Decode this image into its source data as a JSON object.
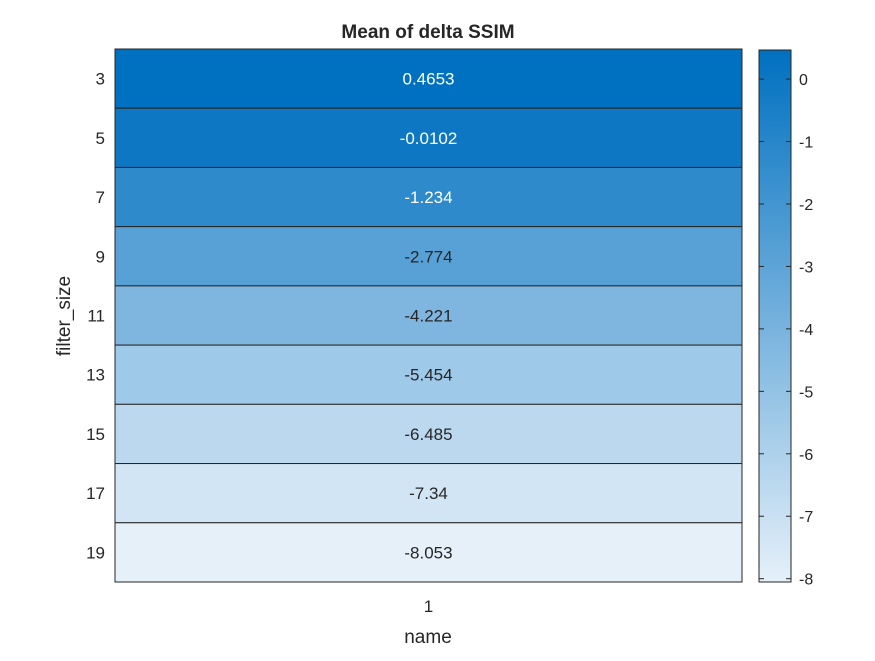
{
  "chart_data": {
    "type": "heatmap",
    "title": "Mean of delta SSIM",
    "xlabel": "name",
    "ylabel": "filter_size",
    "x_categories": [
      "1"
    ],
    "y_categories": [
      "3",
      "5",
      "7",
      "9",
      "11",
      "13",
      "15",
      "17",
      "19"
    ],
    "cell_labels": [
      "0.4653",
      "-0.0102",
      "-1.234",
      "-2.774",
      "-4.221",
      "-5.454",
      "-6.485",
      "-7.34",
      "-8.053"
    ],
    "values": [
      [
        0.4653
      ],
      [
        -0.0102
      ],
      [
        -1.234
      ],
      [
        -2.774
      ],
      [
        -4.221
      ],
      [
        -5.454
      ],
      [
        -6.485
      ],
      [
        -7.34
      ],
      [
        -8.053
      ]
    ],
    "colorbar": {
      "range": [
        -8.053,
        0.4653
      ],
      "ticks": [
        0,
        -1,
        -2,
        -3,
        -4,
        -5,
        -6,
        -7,
        -8
      ],
      "color_low": "#E5F0F9",
      "color_high": "#0070C0"
    },
    "cell_border_color": "#262626",
    "text_color_dark": "#262626",
    "text_color_light": "#ffffff"
  }
}
